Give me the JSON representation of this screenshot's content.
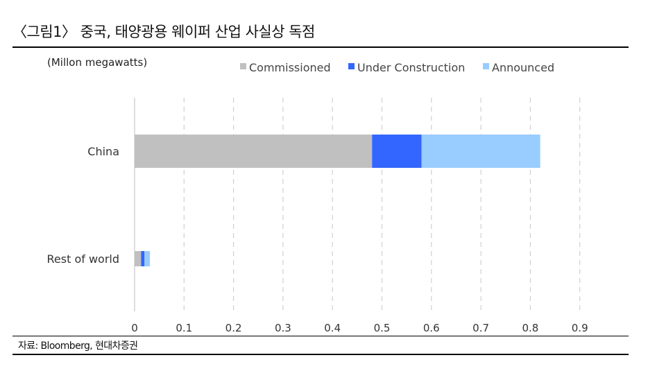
{
  "figure": {
    "title": "〈그림1〉 중국, 태양광용 웨이퍼 산업 사실상 독점",
    "source": "자료: Bloomberg, 현대차증권"
  },
  "chart_data": {
    "type": "bar",
    "orientation": "horizontal",
    "stacked": true,
    "unit_label": "(Millon  megawatts)",
    "categories": [
      "China",
      "Rest of world"
    ],
    "series": [
      {
        "name": "Commissioned",
        "color": "#c0c0c0",
        "values": [
          0.48,
          0.013
        ]
      },
      {
        "name": "Under Construction",
        "color": "#3366ff",
        "values": [
          0.1,
          0.007
        ]
      },
      {
        "name": "Announced",
        "color": "#99ccff",
        "values": [
          0.24,
          0.011
        ]
      }
    ],
    "xlim": [
      0,
      0.9
    ],
    "xticks": [
      "0",
      "0.1",
      "0.2",
      "0.3",
      "0.4",
      "0.5",
      "0.6",
      "0.7",
      "0.8",
      "0.9"
    ],
    "grid": "vertical-dashed",
    "legend": "top"
  }
}
